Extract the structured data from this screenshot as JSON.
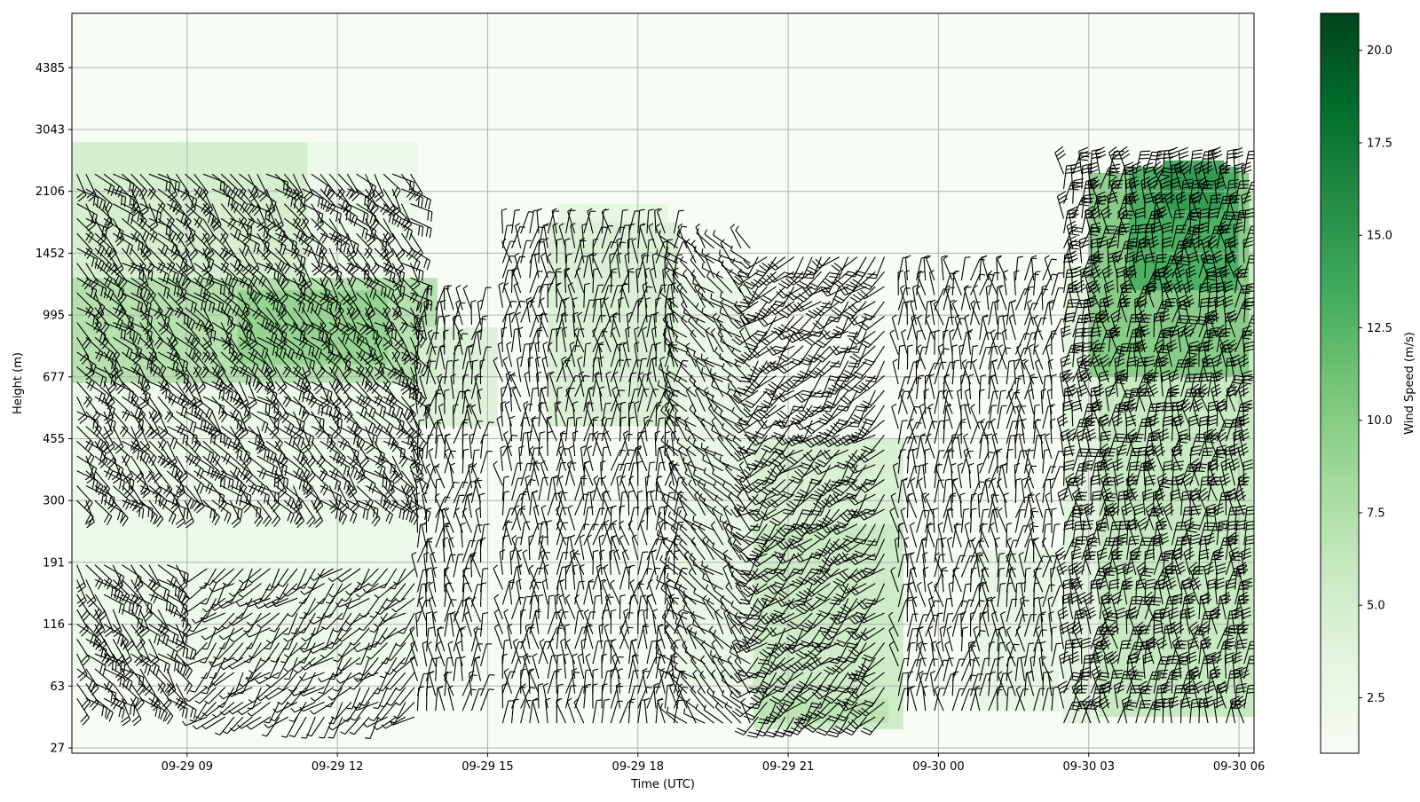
{
  "chart_data": {
    "type": "heatmap",
    "subtype": "wind-barb time-height profile",
    "title": "",
    "xlabel": "Time (UTC)",
    "ylabel": "Height (m)",
    "x_tick_labels": [
      "09-29 09",
      "09-29 12",
      "09-29 15",
      "09-29 18",
      "09-29 21",
      "09-30 00",
      "09-30 03",
      "09-30 06"
    ],
    "x_range_hours": [
      6.7,
      30.3
    ],
    "y_tick_labels": [
      "27",
      "63",
      "116",
      "191",
      "300",
      "455",
      "677",
      "995",
      "1452",
      "2106",
      "3043",
      "4385"
    ],
    "y_scale": "nonlinear (tick labels evenly spaced)",
    "grid": true,
    "colorbar": {
      "label": "Wind Speed (m/s)",
      "colormap": "Greens",
      "range": [
        1.0,
        21.0
      ],
      "tick_labels": [
        "2.5",
        "5.0",
        "7.5",
        "10.0",
        "12.5",
        "15.0",
        "17.5",
        "20.0"
      ],
      "colors": [
        "#f7fcf5",
        "#e5f5e0",
        "#c7e9c0",
        "#a1d99b",
        "#74c476",
        "#41ab5d",
        "#238b45",
        "#006d2c",
        "#00441b"
      ]
    },
    "speed_blocks": [
      {
        "t0": 6.7,
        "t1": 13.6,
        "h0": 1.3,
        "h1": 9.8,
        "speed": 2.6
      },
      {
        "t0": 6.7,
        "t1": 11.4,
        "h0": 7.6,
        "h1": 9.8,
        "speed": 5.2
      },
      {
        "t0": 6.7,
        "t1": 14.0,
        "h0": 5.9,
        "h1": 7.6,
        "speed": 7.8
      },
      {
        "t0": 10.0,
        "t1": 13.0,
        "h0": 6.2,
        "h1": 7.4,
        "speed": 9.5
      },
      {
        "t0": 13.6,
        "t1": 15.2,
        "h0": 5.2,
        "h1": 6.8,
        "speed": 4.5
      },
      {
        "t0": 16.2,
        "t1": 18.8,
        "h0": 5.2,
        "h1": 8.5,
        "speed": 4.8
      },
      {
        "t0": 16.4,
        "t1": 18.6,
        "h0": 8.5,
        "h1": 8.8,
        "speed": 3.5
      },
      {
        "t0": 18.8,
        "t1": 20.3,
        "h0": 1.0,
        "h1": 7.6,
        "speed": 3.2
      },
      {
        "t0": 20.3,
        "t1": 23.3,
        "h0": 3.2,
        "h1": 5.0,
        "speed": 5.0
      },
      {
        "t0": 20.3,
        "t1": 23.3,
        "h0": 0.3,
        "h1": 3.6,
        "speed": 6.0
      },
      {
        "t0": 20.4,
        "t1": 23.0,
        "h0": 0.4,
        "h1": 0.8,
        "speed": 7.0
      },
      {
        "t0": 24.8,
        "t1": 26.4,
        "h0": 0.6,
        "h1": 3.2,
        "speed": 3.5
      },
      {
        "t0": 26.5,
        "t1": 27.2,
        "h0": 0.4,
        "h1": 7.8,
        "speed": 4.0
      },
      {
        "t0": 27.2,
        "t1": 30.3,
        "h0": 0.5,
        "h1": 9.0,
        "speed": 6.5
      },
      {
        "t0": 27.0,
        "t1": 30.2,
        "h0": 6.0,
        "h1": 9.3,
        "speed": 10.5
      },
      {
        "t0": 27.8,
        "t1": 30.0,
        "h0": 7.4,
        "h1": 9.4,
        "speed": 13.5
      },
      {
        "t0": 28.5,
        "t1": 29.7,
        "h0": 8.7,
        "h1": 9.5,
        "speed": 15.0
      }
    ],
    "barb_regions": [
      {
        "t0": 6.8,
        "t1": 13.6,
        "h0": 4.0,
        "h1": 9.3,
        "dir": "southeasterly",
        "speed": 7
      },
      {
        "t0": 6.8,
        "t1": 8.8,
        "h0": 0.8,
        "h1": 3.1,
        "dir": "southeasterly",
        "speed": 6
      },
      {
        "t0": 9.4,
        "t1": 13.6,
        "h0": 0.5,
        "h1": 3.1,
        "dir": "southwesterly",
        "speed": 4
      },
      {
        "t0": 13.6,
        "t1": 15.0,
        "h0": 0.6,
        "h1": 7.2,
        "dir": "northerly",
        "speed": 4
      },
      {
        "t0": 15.3,
        "t1": 18.8,
        "h0": 0.4,
        "h1": 8.4,
        "dir": "northerly",
        "speed": 5
      },
      {
        "t0": 18.8,
        "t1": 20.4,
        "h0": 0.4,
        "h1": 8.2,
        "dir": "northwesterly",
        "speed": 4
      },
      {
        "t0": 20.4,
        "t1": 23.0,
        "h0": 0.5,
        "h1": 8.1,
        "dir": "southwesterly",
        "speed": 6
      },
      {
        "t0": 23.2,
        "t1": 26.4,
        "h0": 0.6,
        "h1": 7.6,
        "dir": "northerly",
        "speed": 4
      },
      {
        "t0": 26.5,
        "t1": 30.2,
        "h0": 0.4,
        "h1": 9.4,
        "dir": "northerly",
        "speed": 11
      }
    ]
  }
}
